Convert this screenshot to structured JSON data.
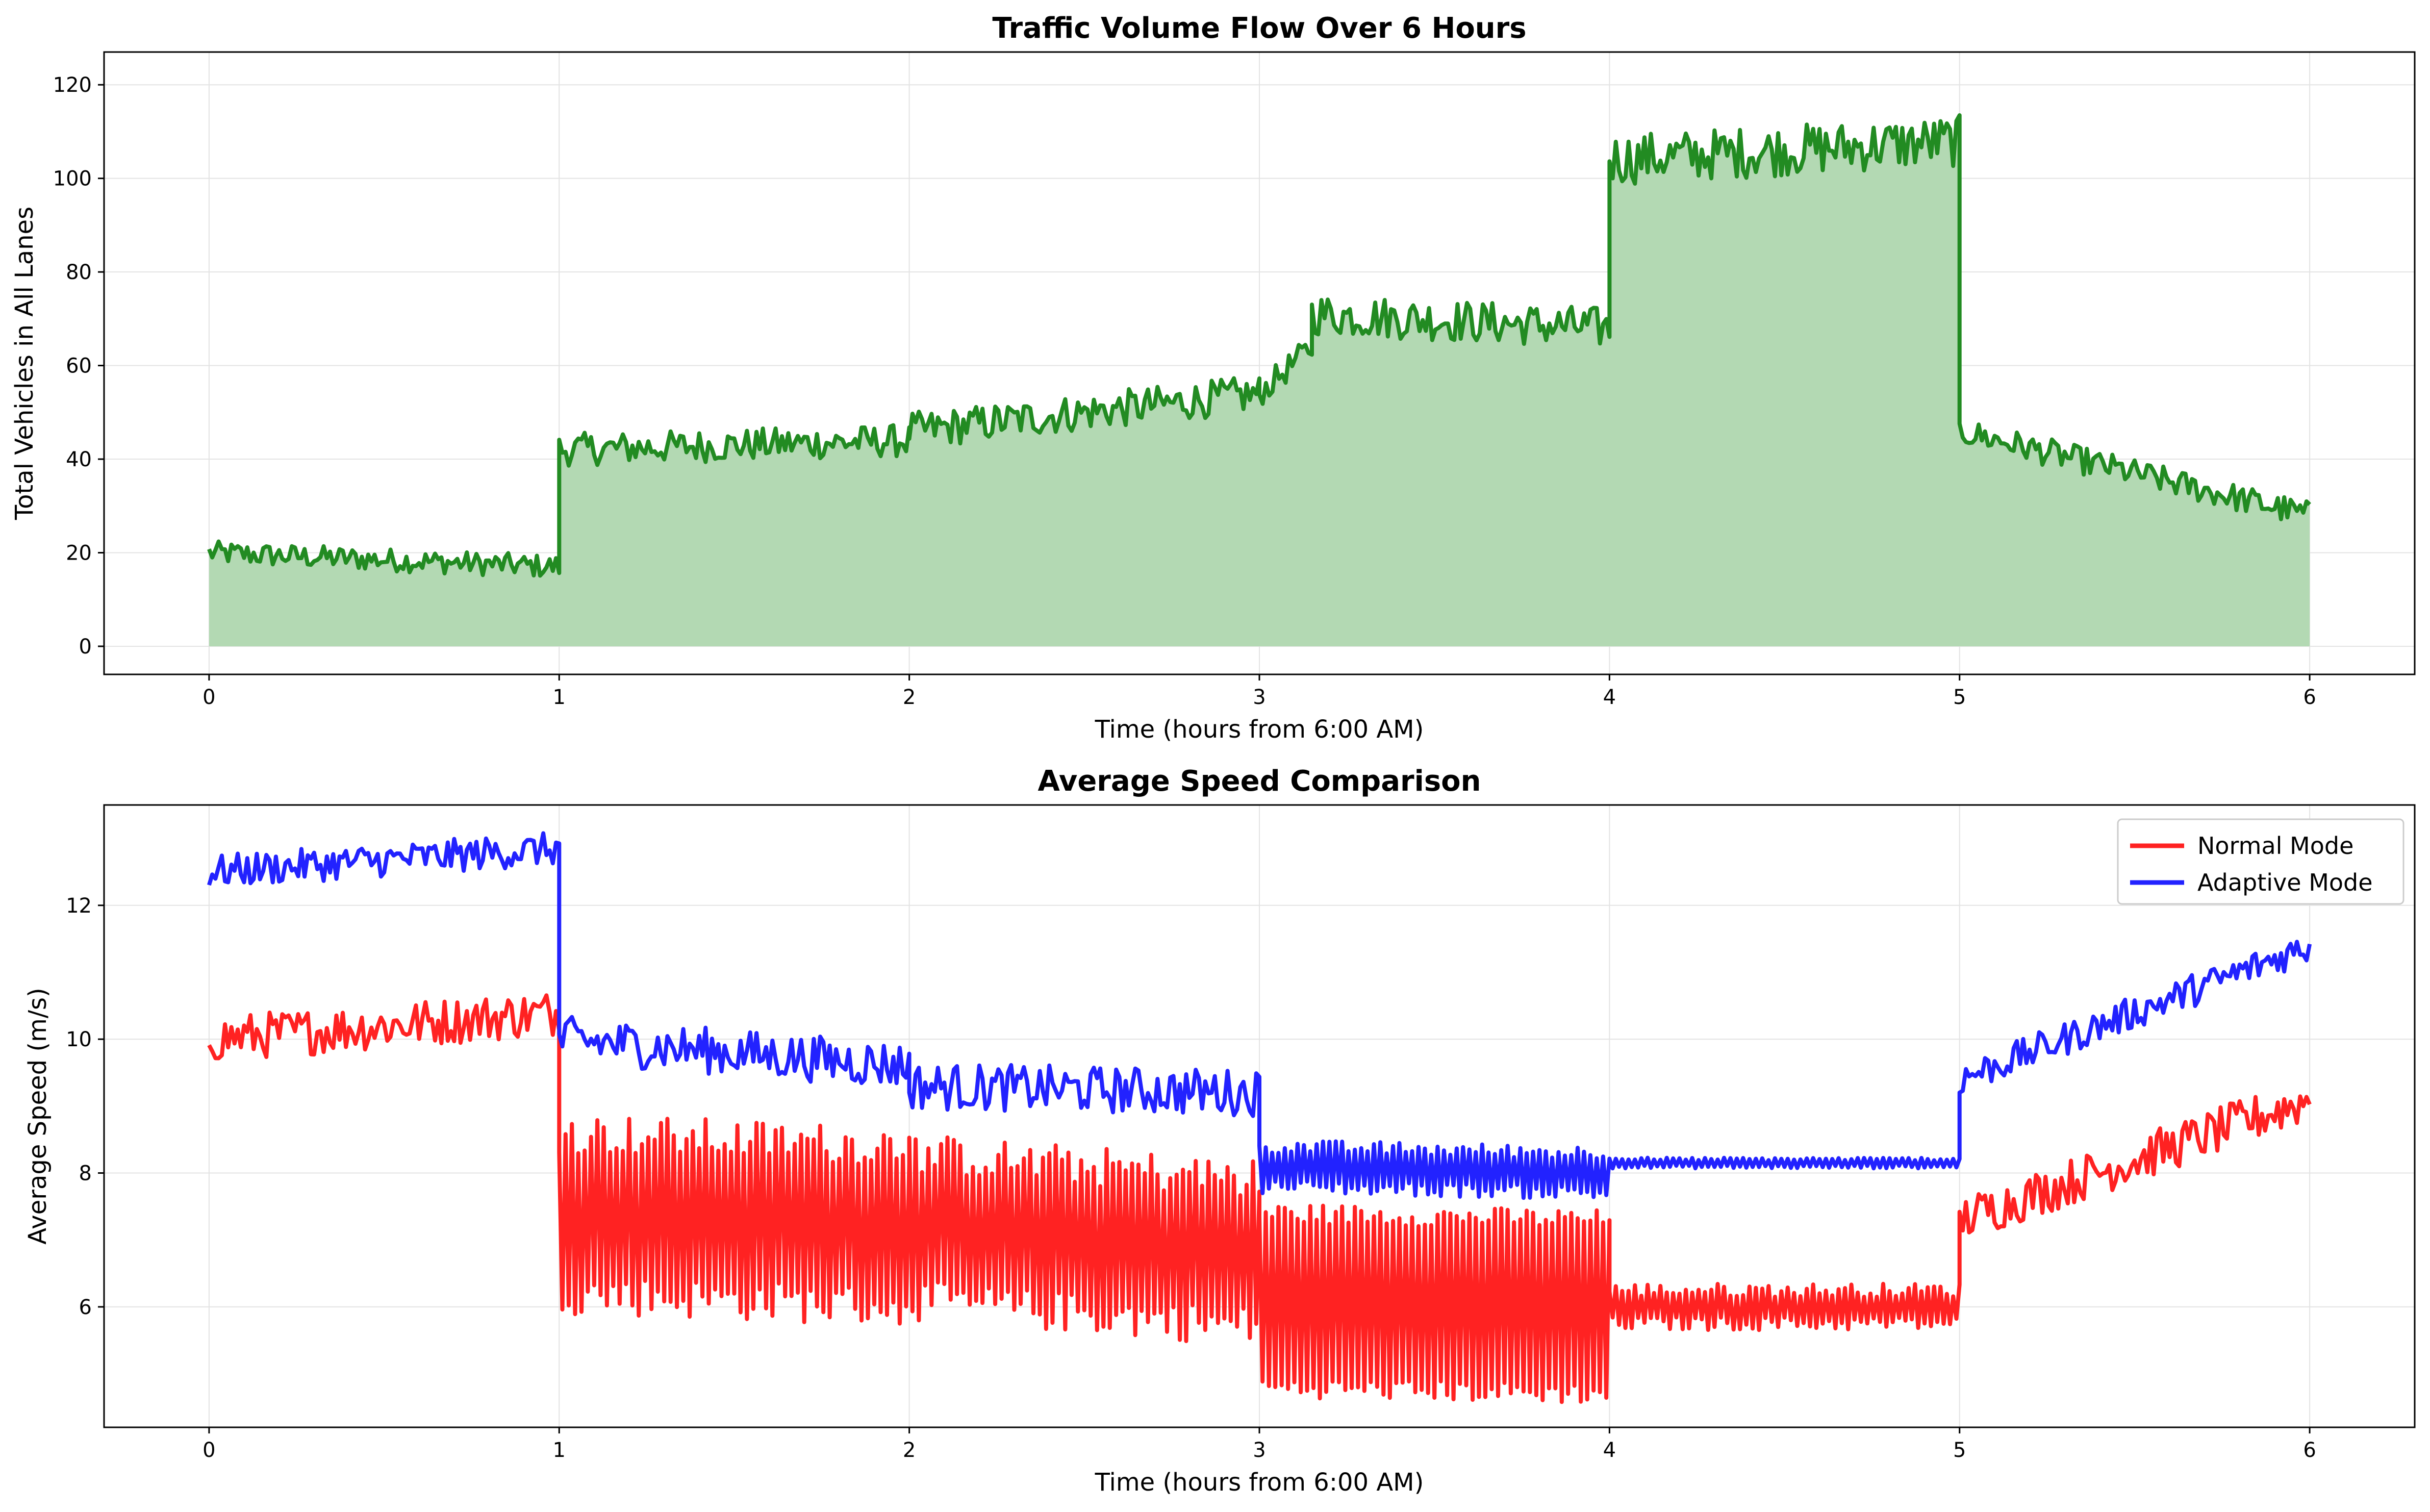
{
  "chart_data": [
    {
      "type": "area",
      "title": "Traffic Volume Flow Over 6 Hours",
      "xlabel": "Time (hours from 6:00 AM)",
      "ylabel": "Total Vehicles in All Lanes",
      "xlim": [
        -0.3,
        6.3
      ],
      "ylim": [
        -6,
        127
      ],
      "xticks": [
        "0",
        "1",
        "2",
        "3",
        "4",
        "5",
        "6"
      ],
      "yticks": [
        "0",
        "20",
        "40",
        "60",
        "80",
        "100",
        "120"
      ],
      "grid": true,
      "series": [
        {
          "color": "#228b22",
          "fill": "#b3d9b3",
          "segments": [
            {
              "x0": 0,
              "x1": 1,
              "base_start": 20,
              "base_end": 17,
              "amp": 2.5
            },
            {
              "x0": 1,
              "x1": 2,
              "base_start": 42,
              "base_end": 44,
              "amp": 3.5
            },
            {
              "x0": 2,
              "x1": 3,
              "base_start": 46,
              "base_end": 54,
              "amp": 4
            },
            {
              "x0": 3,
              "x1": 3.15,
              "base_start": 54,
              "base_end": 64,
              "amp": 3
            },
            {
              "x0": 3.15,
              "x1": 4,
              "base_start": 71,
              "base_end": 68,
              "amp": 4.5
            },
            {
              "x0": 4,
              "x1": 5,
              "base_start": 104,
              "base_end": 108,
              "amp": 5.5
            },
            {
              "x0": 5,
              "x1": 6,
              "base_start": 46,
              "base_end": 28,
              "amp": 3
            }
          ]
        }
      ]
    },
    {
      "type": "line",
      "title": "Average Speed Comparison",
      "xlabel": "Time (hours from 6:00 AM)",
      "ylabel": "Average Speed (m/s)",
      "xlim": [
        -0.3,
        6.3
      ],
      "ylim": [
        4.2,
        13.5
      ],
      "xticks": [
        "0",
        "1",
        "2",
        "3",
        "4",
        "5",
        "6"
      ],
      "yticks": [
        "6",
        "8",
        "10",
        "12"
      ],
      "grid": true,
      "legend_position": "top-right",
      "series": [
        {
          "name": "Normal Mode",
          "color": "#ff2222",
          "segments": [
            {
              "x0": 0,
              "x1": 1,
              "base_start": 10.0,
              "base_end": 10.4,
              "amp": 0.35,
              "osc": 0
            },
            {
              "x0": 1,
              "x1": 2,
              "base_start": 7.4,
              "base_end": 7.2,
              "amp": 0.3,
              "osc": 1.2
            },
            {
              "x0": 2,
              "x1": 3,
              "base_start": 7.2,
              "base_end": 6.8,
              "amp": 0.3,
              "osc": 1.1
            },
            {
              "x0": 3,
              "x1": 4,
              "base_start": 6.1,
              "base_end": 6.0,
              "amp": 0.15,
              "osc": 1.3
            },
            {
              "x0": 4,
              "x1": 5,
              "base_start": 6.0,
              "base_end": 6.0,
              "amp": 0.1,
              "osc": 0.25
            },
            {
              "x0": 5,
              "x1": 6,
              "base_start": 7.3,
              "base_end": 9.1,
              "amp": 0.35,
              "osc": 0
            }
          ]
        },
        {
          "name": "Adaptive Mode",
          "color": "#2222ff",
          "segments": [
            {
              "x0": 0,
              "x1": 1,
              "base_start": 12.5,
              "base_end": 12.85,
              "amp": 0.25,
              "osc": 0
            },
            {
              "x0": 1,
              "x1": 2,
              "base_start": 10.0,
              "base_end": 9.6,
              "amp": 0.35,
              "osc": 0
            },
            {
              "x0": 2,
              "x1": 3,
              "base_start": 9.3,
              "base_end": 9.2,
              "amp": 0.35,
              "osc": 0
            },
            {
              "x0": 3,
              "x1": 4,
              "base_start": 8.1,
              "base_end": 8.0,
              "amp": 0.1,
              "osc": 0.3
            },
            {
              "x0": 4,
              "x1": 5,
              "base_start": 8.15,
              "base_end": 8.15,
              "amp": 0.02,
              "osc": 0.06
            },
            {
              "x0": 5,
              "x1": 6,
              "base_start": 9.4,
              "base_end": 11.4,
              "amp": 0.25,
              "osc": 0
            }
          ]
        }
      ]
    }
  ]
}
